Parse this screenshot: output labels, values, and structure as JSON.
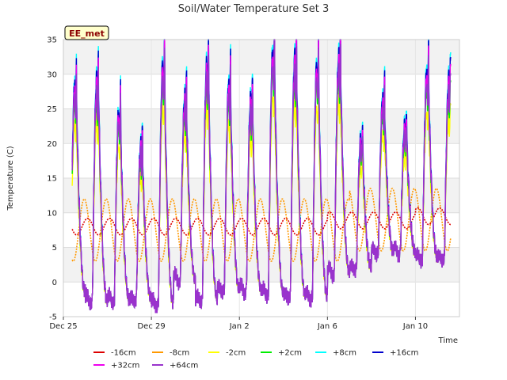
{
  "chart_data": {
    "type": "line",
    "title": "Soil/Water Temperature Set 3",
    "xlabel": "Time",
    "ylabel": "Temperature (C)",
    "site_label": "EE_met",
    "x_ticks": [
      "Dec 25",
      "Dec 29",
      "Jan 2",
      "Jan 6",
      "Jan 10"
    ],
    "x_tick_days": [
      0,
      4,
      8,
      12,
      16
    ],
    "x_range_days": [
      0,
      18
    ],
    "data_range_days": [
      0.4,
      17.6
    ],
    "ylim": [
      -5,
      35
    ],
    "y_ticks": [
      -5,
      0,
      5,
      10,
      15,
      20,
      25,
      30,
      35
    ],
    "grid": true,
    "legend_placement": "bottom",
    "daily_peaks_16cm": [
      29,
      30,
      25,
      20,
      32,
      27,
      32,
      29,
      27,
      34,
      33,
      32,
      33,
      21,
      27,
      23,
      31,
      30
    ],
    "daily_min_64cm": [
      -1.5,
      -2.5,
      -2.5,
      -2.5,
      -3.0,
      0.5,
      -2.5,
      -1.0,
      -1.0,
      -1.5,
      -2.0,
      -2.0,
      1.5,
      2.0,
      4.5,
      4.5,
      3.5,
      3.5
    ],
    "series": [
      {
        "name": "-16cm",
        "color": "#dd0000",
        "mean": 8.0,
        "amplitude": 1.2
      },
      {
        "name": "-8cm",
        "color": "#ff9900",
        "mean": 7.5,
        "amplitude": 4.5
      },
      {
        "name": "-2cm",
        "color": "#ffff00",
        "mean": 8.0,
        "amplitude": 0.8
      },
      {
        "name": "+2cm",
        "color": "#00ee00",
        "mean": 8.0,
        "amplitude": 0.9
      },
      {
        "name": "+8cm",
        "color": "#00ffff",
        "mean": 8.0,
        "amplitude": 1.02
      },
      {
        "name": "+16cm",
        "color": "#0000cc",
        "mean": 8.0,
        "amplitude": 1.0
      },
      {
        "name": "+32cm",
        "color": "#ee00ee",
        "mean": 8.0,
        "amplitude": 0.97
      },
      {
        "name": "+64cm",
        "color": "#9933cc",
        "mean": 8.0,
        "amplitude": 0.93
      }
    ]
  }
}
